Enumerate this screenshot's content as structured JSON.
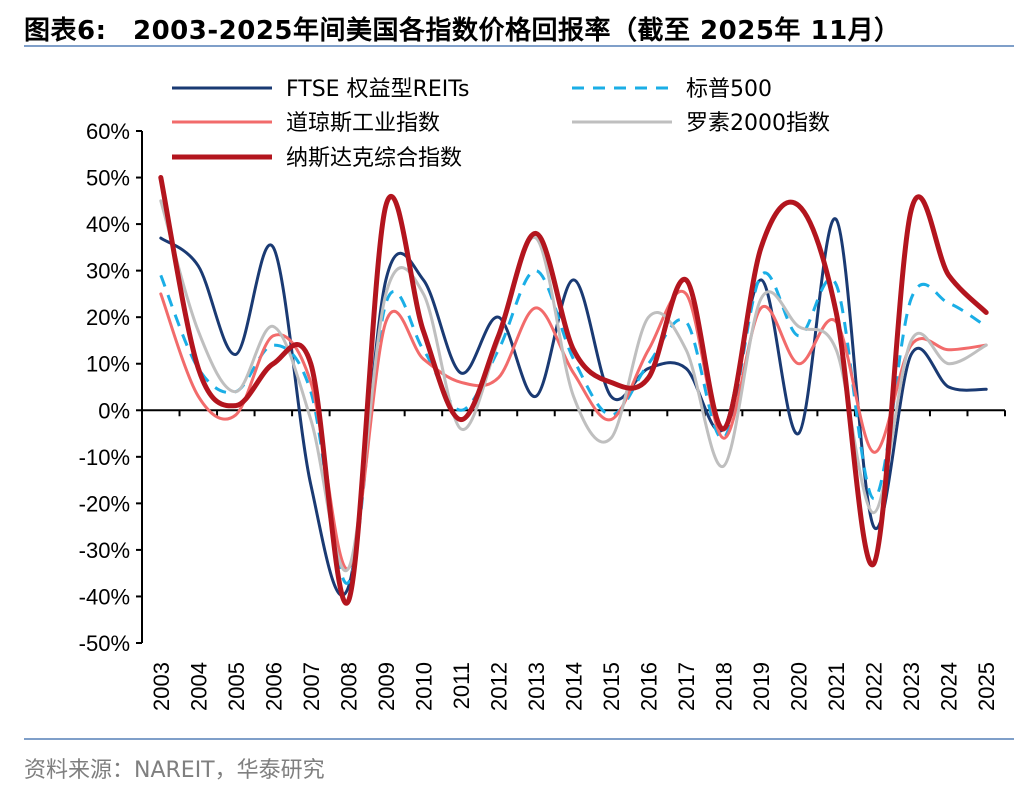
{
  "title": "图表6:　2003-2025年间美国各指数价格回报率（截至 2025年 11月）",
  "source": "资料来源：NAREIT，华泰研究",
  "chart_data": {
    "type": "line",
    "title": "图表6:　2003-2025年间美国各指数价格回报率（截至 2025年 11月）",
    "xlabel": "",
    "ylabel": "",
    "ylim": [
      -50,
      60
    ],
    "yticks": [
      "60%",
      "50%",
      "40%",
      "30%",
      "20%",
      "10%",
      "0%",
      "-10%",
      "-20%",
      "-30%",
      "-40%",
      "-50%"
    ],
    "yticks_values": [
      60,
      50,
      40,
      30,
      20,
      10,
      0,
      -10,
      -20,
      -30,
      -40,
      -50
    ],
    "categories": [
      "2003",
      "2004",
      "2005",
      "2006",
      "2007",
      "2008",
      "2009",
      "2010",
      "2011",
      "2012",
      "2013",
      "2014",
      "2015",
      "2016",
      "2017",
      "2018",
      "2019",
      "2020",
      "2021",
      "2022",
      "2023",
      "2024",
      "2025"
    ],
    "series": [
      {
        "name": "FTSE 权益型REITs",
        "color": "#1a3a73",
        "dash": "",
        "width": 3,
        "values": [
          37,
          31,
          12,
          35,
          -16,
          -38,
          28,
          28,
          8,
          20,
          3,
          28,
          3,
          9,
          9,
          -4,
          28,
          -5,
          41,
          -25,
          12,
          5,
          4.5
        ]
      },
      {
        "name": "标普500",
        "color": "#1aaee6",
        "dash": "12,9",
        "width": 3,
        "values": [
          29,
          9,
          4,
          14,
          4,
          -37,
          23,
          13,
          0,
          13,
          30,
          11,
          -1,
          10,
          19,
          -6,
          29,
          16,
          27,
          -19,
          24,
          23,
          18
        ]
      },
      {
        "name": "道琼斯工业指数",
        "color": "#f26b6b",
        "dash": "",
        "width": 3,
        "values": [
          25,
          3,
          -1,
          16,
          6,
          -34,
          19,
          11,
          6,
          7,
          22,
          8,
          -2,
          13,
          25,
          -6,
          22,
          10,
          19,
          -9,
          14,
          13,
          14
        ]
      },
      {
        "name": "罗素2000指数",
        "color": "#bfbfbf",
        "dash": "",
        "width": 3,
        "values": [
          45,
          17,
          4,
          18,
          -2,
          -34,
          25,
          25,
          -4,
          15,
          37,
          3,
          -6,
          20,
          13,
          -12,
          24,
          18,
          13,
          -22,
          15,
          10,
          14
        ]
      },
      {
        "name": "纳斯达克综合指数",
        "color": "#b3151e",
        "dash": "",
        "width": 5,
        "values": [
          50,
          9,
          1,
          10,
          10,
          -41,
          44,
          17,
          -2,
          16,
          38,
          13,
          6,
          7,
          28,
          -4,
          35,
          44,
          21,
          -33,
          43,
          29,
          21
        ]
      }
    ],
    "legend": "top",
    "grid": false
  }
}
